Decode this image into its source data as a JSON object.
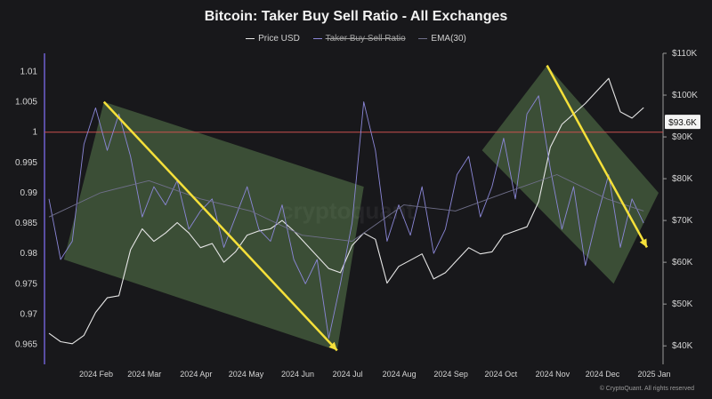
{
  "chart_data": {
    "type": "line",
    "title": "Bitcoin: Taker Buy Sell Ratio - All Exchanges",
    "legend": [
      "Price USD",
      "Taker Buy Sell Ratio",
      "EMA(30)"
    ],
    "x_ticks": [
      "2024 Feb",
      "2024 Mar",
      "2024 Apr",
      "2024 May",
      "2024 Jun",
      "2024 Jul",
      "2024 Aug",
      "2024 Sep",
      "2024 Oct",
      "2024 Nov",
      "2024 Dec",
      "2025 Jan"
    ],
    "y_left_ticks": [
      "1.01",
      "1.005",
      "1",
      "0.995",
      "0.99",
      "0.985",
      "0.98",
      "0.975",
      "0.97",
      "0.965"
    ],
    "y_left_range": [
      0.962,
      1.013
    ],
    "y_right_ticks": [
      "$110K",
      "$100K",
      "$90K",
      "$80K",
      "$70K",
      "$60K",
      "$50K",
      "$40K"
    ],
    "y_right_range": [
      36000,
      110000
    ],
    "last_price_label": "$93.6K",
    "reference_line": 1,
    "series": [
      {
        "name": "Price USD",
        "color": "#e6e6e6",
        "x": [
          "2024-01-15",
          "2024-01-22",
          "2024-01-29",
          "2024-02-05",
          "2024-02-12",
          "2024-02-19",
          "2024-02-26",
          "2024-03-04",
          "2024-03-11",
          "2024-03-18",
          "2024-03-25",
          "2024-04-01",
          "2024-04-08",
          "2024-04-15",
          "2024-04-22",
          "2024-04-29",
          "2024-05-06",
          "2024-05-13",
          "2024-05-20",
          "2024-05-27",
          "2024-06-03",
          "2024-06-10",
          "2024-06-17",
          "2024-06-24",
          "2024-07-01",
          "2024-07-08",
          "2024-07-15",
          "2024-07-22",
          "2024-07-29",
          "2024-08-05",
          "2024-08-12",
          "2024-08-19",
          "2024-08-26",
          "2024-09-02",
          "2024-09-09",
          "2024-09-16",
          "2024-09-23",
          "2024-09-30",
          "2024-10-07",
          "2024-10-14",
          "2024-10-21",
          "2024-10-28",
          "2024-11-04",
          "2024-11-11",
          "2024-11-18",
          "2024-11-25",
          "2024-12-02",
          "2024-12-09",
          "2024-12-16",
          "2024-12-23",
          "2024-12-30",
          "2025-01-06"
        ],
        "y": [
          43000,
          41000,
          40500,
          42500,
          48000,
          51500,
          52000,
          63000,
          68000,
          65000,
          67000,
          69500,
          67000,
          63500,
          64500,
          60000,
          62500,
          66500,
          67500,
          68000,
          70000,
          67500,
          64500,
          61500,
          58500,
          57500,
          64000,
          67000,
          65500,
          55000,
          59000,
          60500,
          62000,
          56000,
          57500,
          60500,
          63500,
          62000,
          62500,
          66500,
          67500,
          68500,
          74500,
          87500,
          93000,
          95500,
          98000,
          101000,
          104000,
          96000,
          94500,
          97000
        ]
      },
      {
        "name": "Taker Buy Sell Ratio",
        "color": "#8b87d8",
        "x": [
          "2024-01-15",
          "2024-01-22",
          "2024-01-29",
          "2024-02-05",
          "2024-02-12",
          "2024-02-19",
          "2024-02-26",
          "2024-03-04",
          "2024-03-11",
          "2024-03-18",
          "2024-03-25",
          "2024-04-01",
          "2024-04-08",
          "2024-04-15",
          "2024-04-22",
          "2024-04-29",
          "2024-05-06",
          "2024-05-13",
          "2024-05-20",
          "2024-05-27",
          "2024-06-03",
          "2024-06-10",
          "2024-06-17",
          "2024-06-24",
          "2024-07-01",
          "2024-07-08",
          "2024-07-15",
          "2024-07-22",
          "2024-07-29",
          "2024-08-05",
          "2024-08-12",
          "2024-08-19",
          "2024-08-26",
          "2024-09-02",
          "2024-09-09",
          "2024-09-16",
          "2024-09-23",
          "2024-09-30",
          "2024-10-07",
          "2024-10-14",
          "2024-10-21",
          "2024-10-28",
          "2024-11-04",
          "2024-11-11",
          "2024-11-18",
          "2024-11-25",
          "2024-12-02",
          "2024-12-09",
          "2024-12-16",
          "2024-12-23",
          "2024-12-30",
          "2025-01-06"
        ],
        "y": [
          0.989,
          0.979,
          0.982,
          0.998,
          1.004,
          0.997,
          1.003,
          0.996,
          0.986,
          0.991,
          0.988,
          0.992,
          0.984,
          0.987,
          0.989,
          0.981,
          0.986,
          0.991,
          0.984,
          0.982,
          0.988,
          0.979,
          0.975,
          0.979,
          0.966,
          0.975,
          0.985,
          1.005,
          0.997,
          0.982,
          0.988,
          0.983,
          0.991,
          0.98,
          0.984,
          0.993,
          0.996,
          0.986,
          0.991,
          0.999,
          0.989,
          1.003,
          1.006,
          0.994,
          0.984,
          0.991,
          0.978,
          0.986,
          0.993,
          0.981,
          0.989,
          0.985
        ]
      },
      {
        "name": "EMA(30)",
        "color": "#6f6f8a",
        "x": [
          "2024-01-15",
          "2024-02-15",
          "2024-03-15",
          "2024-04-15",
          "2024-05-15",
          "2024-06-15",
          "2024-07-15",
          "2024-08-15",
          "2024-09-15",
          "2024-10-15",
          "2024-11-15",
          "2024-12-15",
          "2025-01-06"
        ],
        "y": [
          0.986,
          0.99,
          0.992,
          0.989,
          0.987,
          0.983,
          0.982,
          0.988,
          0.987,
          0.99,
          0.993,
          0.989,
          0.987
        ]
      }
    ],
    "channels": [
      {
        "name": "channel-1",
        "corners_xy": [
          [
            "2024-01-24",
            0.979
          ],
          [
            "2024-02-17",
            1.005
          ],
          [
            "2024-07-22",
            0.991
          ],
          [
            "2024-07-06",
            0.964
          ]
        ]
      },
      {
        "name": "channel-2",
        "corners_xy": [
          [
            "2024-10-01",
            0.997
          ],
          [
            "2024-11-09",
            1.011
          ],
          [
            "2025-01-15",
            0.99
          ],
          [
            "2024-12-19",
            0.975
          ]
        ]
      }
    ],
    "arrows": [
      {
        "from": [
          "2024-02-17",
          1.005
        ],
        "to": [
          "2024-07-06",
          0.964
        ],
        "color": "#f5e03a"
      },
      {
        "from": [
          "2024-11-09",
          1.011
        ],
        "to": [
          "2025-01-08",
          0.981
        ],
        "color": "#f5e03a"
      }
    ],
    "grid": false,
    "legend_position": "top-center"
  },
  "credit": "© CryptoQuant. All rights reserved",
  "watermark": "cryptoquant"
}
